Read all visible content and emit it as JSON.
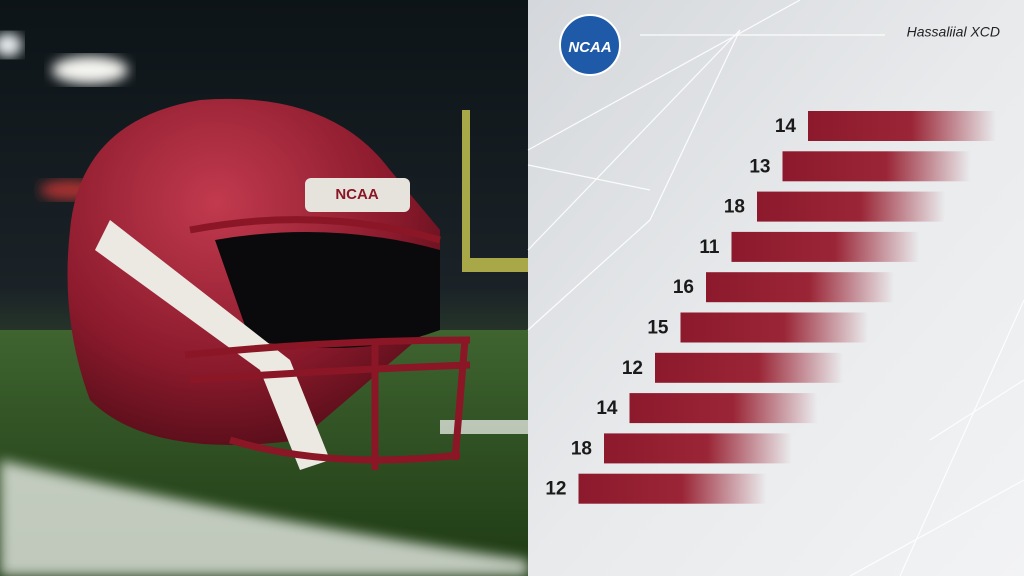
{
  "logo": "NCAA",
  "brand": "Hassaliial XCD",
  "helmet_badge": "NCAA",
  "bars": {
    "labels": [
      "14",
      "13",
      "18",
      "11",
      "16",
      "15",
      "12",
      "14",
      "18",
      "12"
    ]
  }
}
